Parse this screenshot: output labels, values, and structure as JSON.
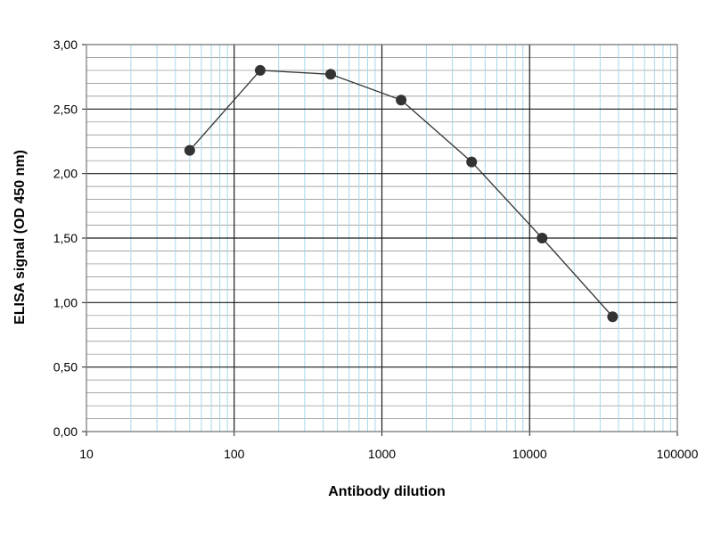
{
  "chart_data": {
    "type": "line",
    "title": "",
    "xlabel": "Antibody dilution",
    "ylabel": "ELISA signal (OD 450 nm)",
    "x_scale": "log",
    "xlim": [
      10,
      100000
    ],
    "ylim": [
      0,
      3
    ],
    "x_ticks": [
      10,
      100,
      1000,
      10000,
      100000
    ],
    "x_tick_labels": [
      "10",
      "100",
      "1000",
      "10000",
      "100000"
    ],
    "y_ticks": [
      0,
      0.5,
      1,
      1.5,
      2,
      2.5,
      3
    ],
    "y_tick_labels": [
      "0,00",
      "0,50",
      "1,00",
      "1,50",
      "2,00",
      "2,50",
      "3,00"
    ],
    "grid": true,
    "legend": "none",
    "colors": {
      "line": "#333333",
      "marker": "#333333",
      "major_grid": "#1a1a1a",
      "minor_grid_x": "#a8d8ea",
      "minor_grid_y": "#888888",
      "plot_border": "#888888"
    },
    "series": [
      {
        "x": [
          50,
          150,
          450,
          1350,
          4050,
          12150,
          36450
        ],
        "values": [
          2.18,
          2.8,
          2.77,
          2.57,
          2.09,
          1.5,
          0.89
        ]
      }
    ]
  }
}
